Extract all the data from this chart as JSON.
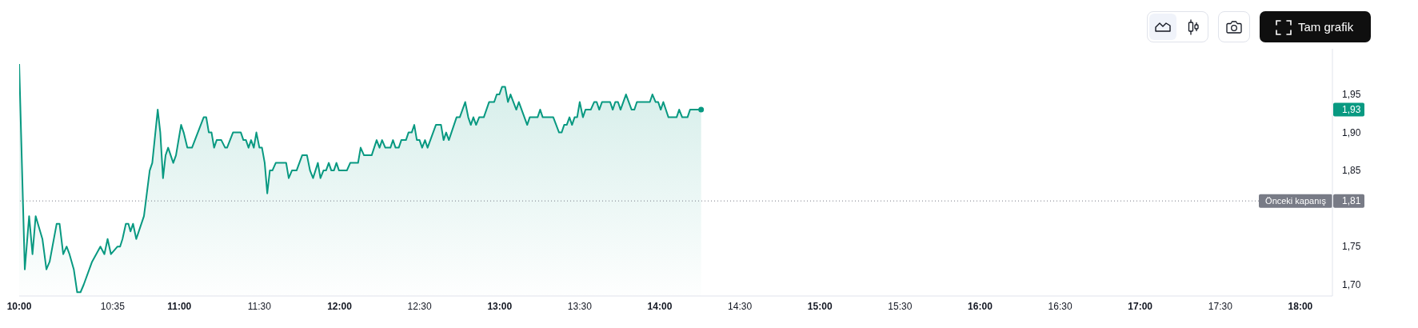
{
  "chart_data": {
    "type": "area",
    "color": "#089981",
    "x": [
      10.0,
      10.035,
      10.062,
      10.083,
      10.103,
      10.145,
      10.17,
      10.19,
      10.234,
      10.252,
      10.275,
      10.296,
      10.314,
      10.341,
      10.362,
      10.383,
      10.403,
      10.455,
      10.507,
      10.532,
      10.552,
      10.573,
      10.614,
      10.63,
      10.645,
      10.666,
      10.682,
      10.695,
      10.711,
      10.731,
      10.779,
      10.815,
      10.831,
      10.865,
      10.881,
      10.898,
      10.914,
      10.93,
      10.962,
      10.979,
      11.011,
      11.027,
      11.05,
      11.079,
      11.152,
      11.168,
      11.184,
      11.201,
      11.217,
      11.233,
      11.262,
      11.286,
      11.298,
      11.335,
      11.384,
      11.4,
      11.416,
      11.432,
      11.448,
      11.465,
      11.481,
      11.5,
      11.516,
      11.533,
      11.549,
      11.565,
      11.581,
      11.602,
      11.667,
      11.683,
      11.703,
      11.732,
      11.767,
      11.797,
      11.816,
      11.835,
      11.865,
      11.881,
      11.9,
      11.916,
      11.933,
      11.949,
      11.965,
      11.981,
      11.997,
      12.046,
      12.067,
      12.116,
      12.132,
      12.153,
      12.201,
      12.232,
      12.25,
      12.266,
      12.286,
      12.318,
      12.334,
      12.35,
      12.37,
      12.386,
      12.415,
      12.431,
      12.451,
      12.467,
      12.483,
      12.5,
      12.516,
      12.534,
      12.55,
      12.602,
      12.634,
      12.65,
      12.666,
      12.683,
      12.731,
      12.751,
      12.785,
      12.804,
      12.82,
      12.836,
      12.853,
      12.872,
      12.901,
      12.934,
      12.966,
      12.982,
      12.998,
      13.015,
      13.034,
      13.052,
      13.068,
      13.104,
      13.12,
      13.172,
      13.188,
      13.237,
      13.253,
      13.269,
      13.335,
      13.371,
      13.387,
      13.403,
      13.419,
      13.436,
      13.452,
      13.468,
      13.484,
      13.5,
      13.52,
      13.536,
      13.569,
      13.59,
      13.606,
      13.622,
      13.639,
      13.69,
      13.706,
      13.722,
      13.739,
      13.755,
      13.789,
      13.824,
      13.841,
      13.857,
      13.938,
      13.954,
      13.974,
      13.99,
      14.006,
      14.022,
      14.054,
      14.105,
      14.121,
      14.14,
      14.173,
      14.189,
      14.258
    ],
    "values": [
      1.99,
      1.72,
      1.79,
      1.74,
      1.79,
      1.76,
      1.72,
      1.73,
      1.78,
      1.78,
      1.74,
      1.75,
      1.74,
      1.72,
      1.69,
      1.69,
      1.7,
      1.73,
      1.75,
      1.74,
      1.76,
      1.74,
      1.75,
      1.75,
      1.76,
      1.78,
      1.78,
      1.77,
      1.78,
      1.76,
      1.79,
      1.85,
      1.86,
      1.93,
      1.9,
      1.84,
      1.87,
      1.88,
      1.86,
      1.87,
      1.91,
      1.9,
      1.88,
      1.88,
      1.92,
      1.92,
      1.9,
      1.9,
      1.88,
      1.89,
      1.89,
      1.88,
      1.88,
      1.9,
      1.9,
      1.89,
      1.89,
      1.88,
      1.89,
      1.88,
      1.9,
      1.88,
      1.88,
      1.86,
      1.82,
      1.85,
      1.85,
      1.86,
      1.86,
      1.84,
      1.85,
      1.85,
      1.87,
      1.87,
      1.85,
      1.84,
      1.86,
      1.84,
      1.85,
      1.85,
      1.86,
      1.85,
      1.85,
      1.86,
      1.85,
      1.85,
      1.86,
      1.86,
      1.88,
      1.87,
      1.87,
      1.89,
      1.88,
      1.89,
      1.88,
      1.88,
      1.89,
      1.88,
      1.88,
      1.89,
      1.89,
      1.9,
      1.9,
      1.91,
      1.89,
      1.89,
      1.88,
      1.89,
      1.88,
      1.91,
      1.91,
      1.89,
      1.9,
      1.89,
      1.92,
      1.92,
      1.94,
      1.92,
      1.91,
      1.92,
      1.91,
      1.92,
      1.92,
      1.94,
      1.94,
      1.95,
      1.95,
      1.96,
      1.96,
      1.94,
      1.95,
      1.93,
      1.94,
      1.91,
      1.92,
      1.92,
      1.93,
      1.92,
      1.92,
      1.9,
      1.9,
      1.91,
      1.91,
      1.92,
      1.91,
      1.92,
      1.92,
      1.94,
      1.92,
      1.93,
      1.93,
      1.94,
      1.94,
      1.93,
      1.94,
      1.94,
      1.93,
      1.94,
      1.94,
      1.93,
      1.95,
      1.93,
      1.93,
      1.94,
      1.94,
      1.95,
      1.94,
      1.94,
      1.93,
      1.94,
      1.92,
      1.92,
      1.93,
      1.92,
      1.92,
      1.93,
      1.93
    ],
    "xlim": [
      10,
      18.2
    ],
    "xticks": [
      {
        "value": 10,
        "label": "10:00"
      },
      {
        "value": 10.5833,
        "label": "10:35"
      },
      {
        "value": 11,
        "label": "11:00"
      },
      {
        "value": 11.5,
        "label": "11:30"
      },
      {
        "value": 12,
        "label": "12:00"
      },
      {
        "value": 12.5,
        "label": "12:30"
      },
      {
        "value": 13,
        "label": "13:00"
      },
      {
        "value": 13.5,
        "label": "13:30"
      },
      {
        "value": 14,
        "label": "14:00"
      },
      {
        "value": 14.5,
        "label": "14:30"
      },
      {
        "value": 15,
        "label": "15:00"
      },
      {
        "value": 15.5,
        "label": "15:30"
      },
      {
        "value": 16,
        "label": "16:00"
      },
      {
        "value": 16.5,
        "label": "16:30"
      },
      {
        "value": 17,
        "label": "17:00"
      },
      {
        "value": 17.5,
        "label": "17:30"
      },
      {
        "value": 18,
        "label": "18:00"
      }
    ],
    "ylim": [
      1.685,
      2.01
    ],
    "yticks": [
      {
        "value": 1.7,
        "label": "1,70"
      },
      {
        "value": 1.75,
        "label": "1,75"
      },
      {
        "value": 1.81,
        "label": "1,81"
      },
      {
        "value": 1.85,
        "label": "1,85"
      },
      {
        "value": 1.9,
        "label": "1,90"
      },
      {
        "value": 1.93,
        "label": "1,93"
      },
      {
        "value": 1.95,
        "label": "1,95"
      }
    ],
    "ref_lines": [
      {
        "axis": "y",
        "value": 1.81,
        "label": "Önceki kapanış",
        "color": "#787b86",
        "line_style": "dotted"
      }
    ],
    "annotations": [
      "Tam grafik"
    ]
  }
}
